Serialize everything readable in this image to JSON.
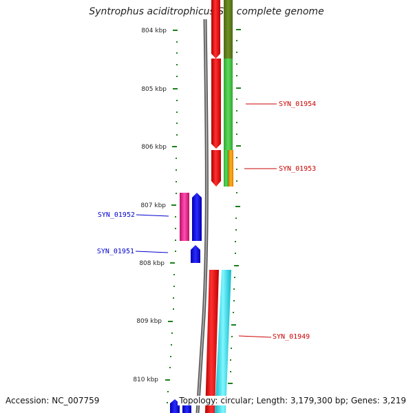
{
  "title": "Syntrophus aciditrophicus SB, complete genome",
  "footer": {
    "accession": "Accession: NC_007759",
    "topology": "Topology: circular; Length: 3,179,300 bp; Genes: 3,219"
  },
  "scale": {
    "ticks": [
      "804 kbp",
      "805 kbp",
      "806 kbp",
      "807 kbp",
      "808 kbp",
      "809 kbp",
      "810 kbp"
    ]
  },
  "gene_labels": [
    {
      "text": "SYN_01954",
      "color": "#cc0000"
    },
    {
      "text": "SYN_01953",
      "color": "#cc0000"
    },
    {
      "text": "SYN_01952",
      "color": "#0000cc"
    },
    {
      "text": "SYN_01951",
      "color": "#0000cc"
    },
    {
      "text": "SYN_01949",
      "color": "#cc0000"
    }
  ],
  "colors": {
    "forward_gene": "#ff0000",
    "reverse_gene": "#0000ff",
    "tick": "#1a7f1a",
    "backbone": "#888888"
  }
}
